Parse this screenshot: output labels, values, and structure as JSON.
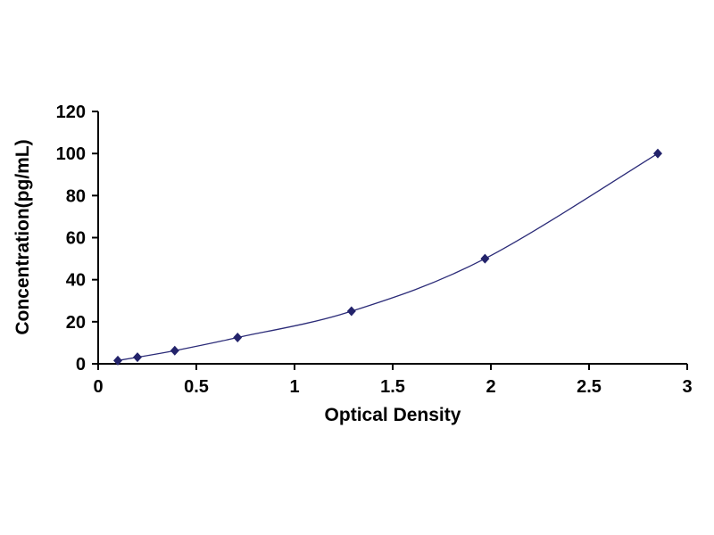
{
  "page": {
    "background": "#ffffff"
  },
  "chart_data": {
    "type": "line",
    "x": [
      0.1,
      0.2,
      0.39,
      0.71,
      1.29,
      1.97,
      2.85
    ],
    "y": [
      1.56,
      3.12,
      6.25,
      12.5,
      25,
      50,
      100
    ],
    "title": "",
    "xlabel": "Optical Density",
    "ylabel": "Concentration(pg/mL)",
    "xlim": [
      0,
      3
    ],
    "ylim": [
      0,
      120
    ],
    "xticks": [
      0,
      0.5,
      1,
      1.5,
      2,
      2.5,
      3
    ],
    "yticks": [
      0,
      20,
      40,
      60,
      80,
      100,
      120
    ],
    "grid": false,
    "legend": "none",
    "marker": "diamond",
    "marker_color": "#23236b",
    "line_color": "#2b2b78",
    "axis_color": "#000000"
  }
}
